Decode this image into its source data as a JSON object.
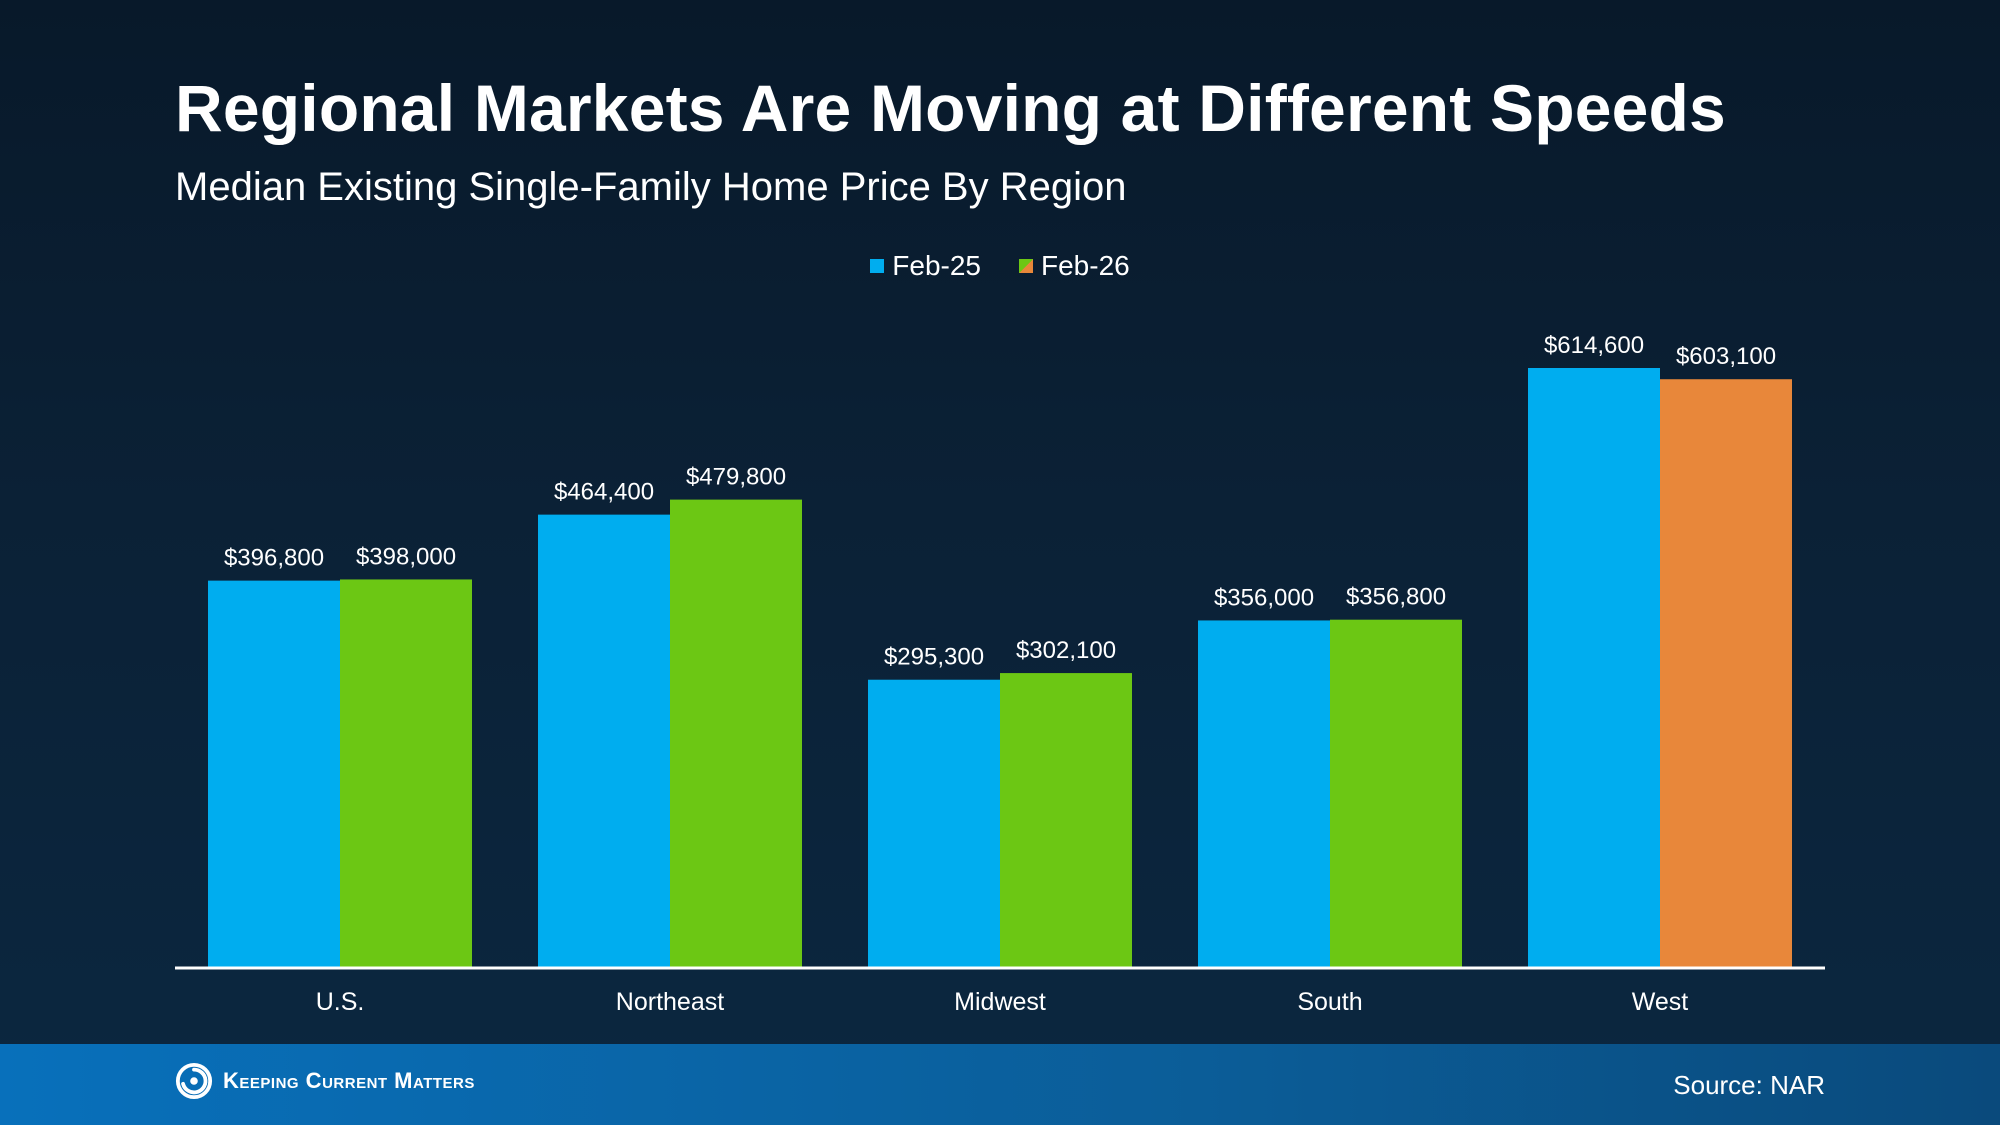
{
  "header": {
    "title": "Regional Markets Are Moving at Different Speeds",
    "subtitle": "Median Existing Single-Family Home Price By Region"
  },
  "footer": {
    "brand": "Keeping Current Matters",
    "source": "Source: NAR"
  },
  "colors": {
    "feb25": "#00adef",
    "feb26": "#6cc714",
    "west_feb26": "#e8873a",
    "axis": "#ffffff"
  },
  "chart_data": {
    "type": "bar",
    "title": "Regional Markets Are Moving at Different Speeds",
    "subtitle": "Median Existing Single-Family Home Price By Region",
    "categories": [
      "U.S.",
      "Northeast",
      "Midwest",
      "South",
      "West"
    ],
    "series": [
      {
        "name": "Feb-25",
        "values": [
          396800,
          464400,
          295300,
          356000,
          614600
        ],
        "labels": [
          "$396,800",
          "$464,400",
          "$295,300",
          "$356,000",
          "$614,600"
        ]
      },
      {
        "name": "Feb-26",
        "values": [
          398000,
          479800,
          302100,
          356800,
          603100
        ],
        "labels": [
          "$398,000",
          "$479,800",
          "$302,100",
          "$356,800",
          "$603,100"
        ]
      }
    ],
    "xlabel": "",
    "ylabel": "",
    "ylim": [
      0,
      700000
    ],
    "grid": false,
    "legend": "top-center"
  }
}
